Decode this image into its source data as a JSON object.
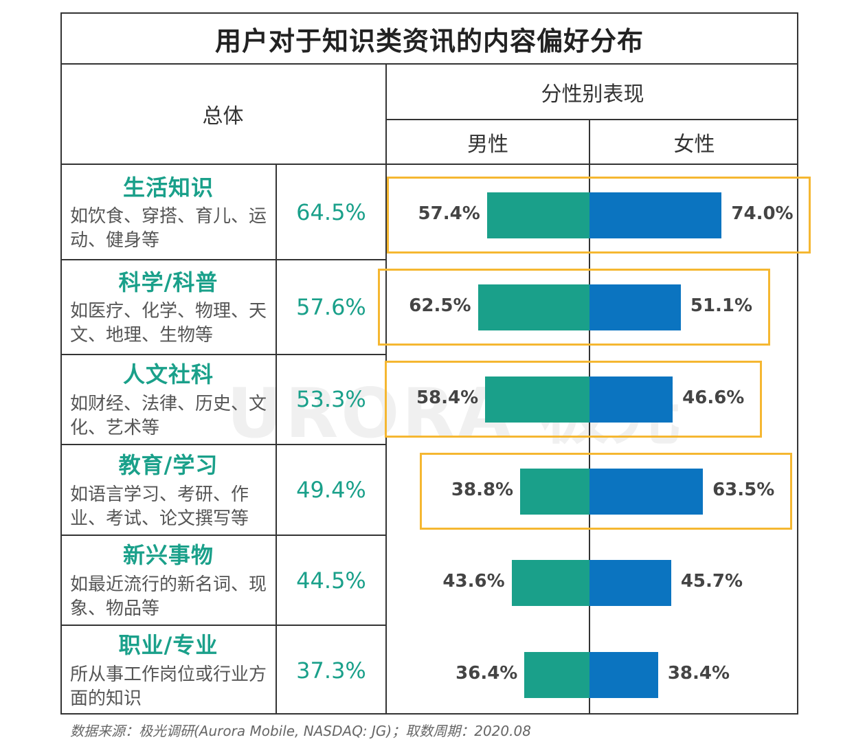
{
  "title": "用户对于知识类资讯的内容偏好分布",
  "headers": {
    "overall": "总体",
    "by_gender": "分性别表现",
    "male": "男性",
    "female": "女性"
  },
  "rows": [
    {
      "title": "生活知识",
      "desc": "如饮食、穿搭、育儿、运动、健身等",
      "overall": "64.5%",
      "male": "57.4%",
      "female": "74.0%"
    },
    {
      "title": "科学/科普",
      "desc": "如医疗、化学、物理、天文、地理、生物等",
      "overall": "57.6%",
      "male": "62.5%",
      "female": "51.1%"
    },
    {
      "title": "人文社科",
      "desc": "如财经、法律、历史、文化、艺术等",
      "overall": "53.3%",
      "male": "58.4%",
      "female": "46.6%"
    },
    {
      "title": "教育/学习",
      "desc": "如语言学习、考研、作业、考试、论文撰写等",
      "overall": "49.4%",
      "male": "38.8%",
      "female": "63.5%"
    },
    {
      "title": "新兴事物",
      "desc": "如最近流行的新名词、现象、物品等",
      "overall": "44.5%",
      "male": "43.6%",
      "female": "45.7%"
    },
    {
      "title": "职业/专业",
      "desc": "所从事工作岗位或行业方面的知识",
      "overall": "37.3%",
      "male": "36.4%",
      "female": "38.4%"
    }
  ],
  "watermark": "URORA 极光",
  "source": "数据来源：极光调研(Aurora Mobile, NASDAQ: JG)；取数周期：2020.08",
  "colors": {
    "male": "#1aa08a",
    "female": "#0b74c0",
    "highlight": "#f5b731",
    "accent_text": "#1aa08a"
  },
  "chart_data": {
    "type": "bar",
    "title": "用户对于知识类资讯的内容偏好分布",
    "categories": [
      "生活知识",
      "科学/科普",
      "人文社科",
      "教育/学习",
      "新兴事物",
      "职业/专业"
    ],
    "series": [
      {
        "name": "总体",
        "values": [
          64.5,
          57.6,
          53.3,
          49.4,
          44.5,
          37.3
        ]
      },
      {
        "name": "男性",
        "values": [
          57.4,
          62.5,
          58.4,
          38.8,
          43.6,
          36.4
        ]
      },
      {
        "name": "女性",
        "values": [
          74.0,
          51.1,
          46.6,
          63.5,
          45.7,
          38.4
        ]
      }
    ],
    "highlighted_categories": [
      "生活知识",
      "科学/科普",
      "人文社科",
      "教育/学习"
    ],
    "unit": "%"
  }
}
